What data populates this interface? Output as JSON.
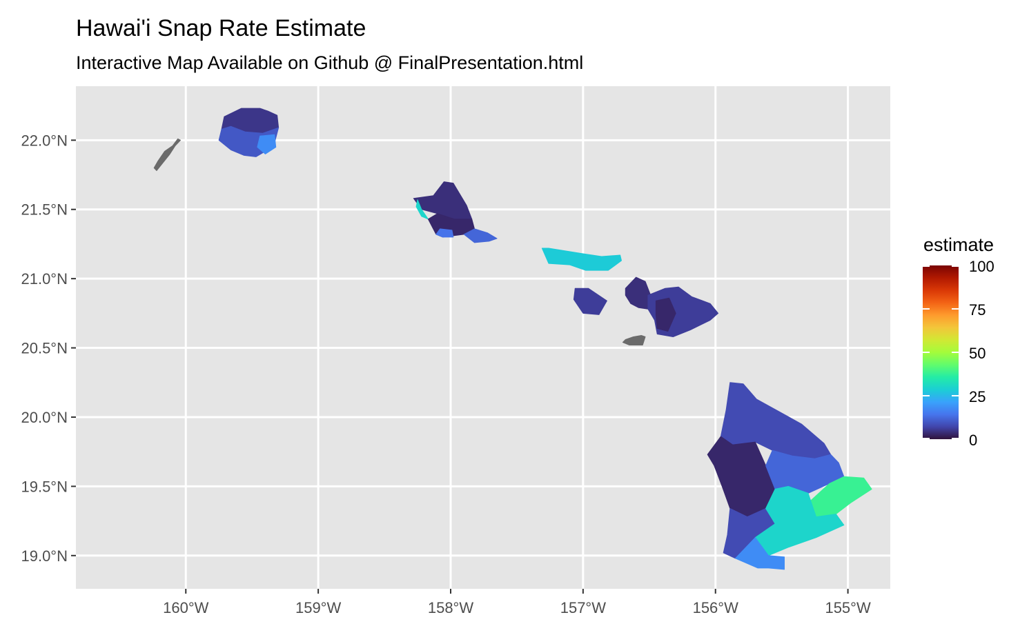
{
  "title": "Hawai'i Snap Rate Estimate",
  "subtitle": "Interactive Map Available on Github @ FinalPresentation.html",
  "map": {
    "panel_background": "#e5e5e5",
    "grid_color": "#ffffff",
    "missing_color": "#6b6b6b",
    "lon_range": [
      -160.83,
      -154.68
    ],
    "lat_range": [
      18.76,
      22.39
    ],
    "lon_ticks": [
      {
        "value": -160,
        "label": "160°W"
      },
      {
        "value": -159,
        "label": "159°W"
      },
      {
        "value": -158,
        "label": "158°W"
      },
      {
        "value": -157,
        "label": "157°W"
      },
      {
        "value": -156,
        "label": "156°W"
      },
      {
        "value": -155,
        "label": "155°W"
      }
    ],
    "lat_ticks": [
      {
        "value": 22.0,
        "label": "22.0°N"
      },
      {
        "value": 21.5,
        "label": "21.5°N"
      },
      {
        "value": 21.0,
        "label": "21.0°N"
      },
      {
        "value": 20.5,
        "label": "20.5°N"
      },
      {
        "value": 20.0,
        "label": "20.0°N"
      },
      {
        "value": 19.5,
        "label": "19.5°N"
      },
      {
        "value": 19.0,
        "label": "19.0°N"
      }
    ],
    "regions": [
      {
        "id": "niihau",
        "estimate": null,
        "points": [
          [
            -160.06,
            22.01
          ],
          [
            -160.1,
            21.96
          ],
          [
            -160.16,
            21.92
          ],
          [
            -160.21,
            21.85
          ],
          [
            -160.24,
            21.8
          ],
          [
            -160.22,
            21.78
          ],
          [
            -160.17,
            21.84
          ],
          [
            -160.12,
            21.9
          ],
          [
            -160.08,
            21.96
          ],
          [
            -160.04,
            22.0
          ]
        ]
      },
      {
        "id": "kauai-north",
        "estimate": 5,
        "points": [
          [
            -159.71,
            22.17
          ],
          [
            -159.58,
            22.23
          ],
          [
            -159.44,
            22.23
          ],
          [
            -159.38,
            22.21
          ],
          [
            -159.31,
            22.18
          ],
          [
            -159.3,
            22.09
          ],
          [
            -159.42,
            22.05
          ],
          [
            -159.55,
            22.06
          ],
          [
            -159.66,
            22.1
          ],
          [
            -159.73,
            22.08
          ]
        ]
      },
      {
        "id": "kauai-south",
        "estimate": 10,
        "points": [
          [
            -159.73,
            22.08
          ],
          [
            -159.66,
            22.1
          ],
          [
            -159.55,
            22.06
          ],
          [
            -159.42,
            22.05
          ],
          [
            -159.3,
            22.09
          ],
          [
            -159.33,
            21.98
          ],
          [
            -159.38,
            21.93
          ],
          [
            -159.47,
            21.88
          ],
          [
            -159.56,
            21.89
          ],
          [
            -159.66,
            21.93
          ],
          [
            -159.75,
            22.0
          ]
        ]
      },
      {
        "id": "kauai-east",
        "estimate": 18,
        "points": [
          [
            -159.44,
            22.03
          ],
          [
            -159.33,
            22.04
          ],
          [
            -159.32,
            21.95
          ],
          [
            -159.4,
            21.9
          ],
          [
            -159.46,
            21.95
          ]
        ]
      },
      {
        "id": "oahu-north",
        "estimate": 4,
        "points": [
          [
            -158.28,
            21.58
          ],
          [
            -158.13,
            21.6
          ],
          [
            -158.05,
            21.7
          ],
          [
            -157.98,
            21.69
          ],
          [
            -157.88,
            21.53
          ],
          [
            -157.84,
            21.43
          ],
          [
            -157.97,
            21.43
          ],
          [
            -158.1,
            21.47
          ],
          [
            -158.22,
            21.5
          ]
        ]
      },
      {
        "id": "oahu-leeward",
        "estimate": 30,
        "points": [
          [
            -158.25,
            21.57
          ],
          [
            -158.22,
            21.5
          ],
          [
            -158.17,
            21.43
          ],
          [
            -158.22,
            21.45
          ],
          [
            -158.26,
            21.52
          ]
        ]
      },
      {
        "id": "oahu-central",
        "estimate": 3,
        "points": [
          [
            -158.17,
            21.43
          ],
          [
            -158.1,
            21.47
          ],
          [
            -157.97,
            21.43
          ],
          [
            -157.84,
            21.43
          ],
          [
            -157.82,
            21.36
          ],
          [
            -157.9,
            21.32
          ],
          [
            -158.06,
            21.3
          ],
          [
            -158.11,
            21.32
          ]
        ]
      },
      {
        "id": "oahu-south",
        "estimate": 12,
        "points": [
          [
            -157.9,
            21.32
          ],
          [
            -157.82,
            21.36
          ],
          [
            -157.72,
            21.33
          ],
          [
            -157.65,
            21.29
          ],
          [
            -157.71,
            21.27
          ],
          [
            -157.82,
            21.26
          ]
        ]
      },
      {
        "id": "oahu-ewa",
        "estimate": 14,
        "points": [
          [
            -158.11,
            21.32
          ],
          [
            -158.06,
            21.3
          ],
          [
            -157.98,
            21.3
          ],
          [
            -157.99,
            21.35
          ],
          [
            -158.08,
            21.36
          ]
        ]
      },
      {
        "id": "molokai",
        "estimate": 28,
        "points": [
          [
            -157.31,
            21.22
          ],
          [
            -157.26,
            21.11
          ],
          [
            -157.1,
            21.1
          ],
          [
            -156.98,
            21.06
          ],
          [
            -156.81,
            21.06
          ],
          [
            -156.71,
            21.13
          ],
          [
            -156.72,
            21.17
          ],
          [
            -156.86,
            21.16
          ],
          [
            -157.0,
            21.18
          ],
          [
            -157.26,
            21.22
          ]
        ]
      },
      {
        "id": "lanai",
        "estimate": 6,
        "points": [
          [
            -157.06,
            20.93
          ],
          [
            -156.96,
            20.93
          ],
          [
            -156.82,
            20.84
          ],
          [
            -156.88,
            20.74
          ],
          [
            -157.0,
            20.75
          ],
          [
            -157.07,
            20.85
          ]
        ]
      },
      {
        "id": "kahoolawe",
        "estimate": null,
        "points": [
          [
            -156.7,
            20.54
          ],
          [
            -156.65,
            20.52
          ],
          [
            -156.55,
            20.52
          ],
          [
            -156.53,
            20.58
          ],
          [
            -156.56,
            20.59
          ],
          [
            -156.62,
            20.58
          ],
          [
            -156.68,
            20.56
          ]
        ]
      },
      {
        "id": "maui-west",
        "estimate": 4,
        "points": [
          [
            -156.68,
            20.93
          ],
          [
            -156.6,
            21.01
          ],
          [
            -156.53,
            20.98
          ],
          [
            -156.49,
            20.88
          ],
          [
            -156.51,
            20.78
          ],
          [
            -156.58,
            20.79
          ],
          [
            -156.64,
            20.82
          ],
          [
            -156.68,
            20.88
          ]
        ]
      },
      {
        "id": "maui-east",
        "estimate": 6,
        "points": [
          [
            -156.51,
            20.88
          ],
          [
            -156.38,
            20.93
          ],
          [
            -156.28,
            20.94
          ],
          [
            -156.18,
            20.87
          ],
          [
            -156.04,
            20.82
          ],
          [
            -155.98,
            20.75
          ],
          [
            -156.04,
            20.7
          ],
          [
            -156.19,
            20.63
          ],
          [
            -156.32,
            20.58
          ],
          [
            -156.44,
            20.6
          ],
          [
            -156.46,
            20.7
          ],
          [
            -156.51,
            20.78
          ]
        ]
      },
      {
        "id": "maui-central",
        "estimate": 3,
        "points": [
          [
            -156.45,
            20.84
          ],
          [
            -156.35,
            20.86
          ],
          [
            -156.3,
            20.75
          ],
          [
            -156.36,
            20.62
          ],
          [
            -156.44,
            20.64
          ],
          [
            -156.45,
            20.74
          ]
        ]
      },
      {
        "id": "hawaii-north",
        "estimate": 8,
        "points": [
          [
            -155.89,
            20.25
          ],
          [
            -155.79,
            20.24
          ],
          [
            -155.69,
            20.13
          ],
          [
            -155.52,
            20.04
          ],
          [
            -155.35,
            19.95
          ],
          [
            -155.18,
            19.81
          ],
          [
            -155.13,
            19.73
          ],
          [
            -155.25,
            19.7
          ],
          [
            -155.42,
            19.72
          ],
          [
            -155.57,
            19.76
          ],
          [
            -155.7,
            19.82
          ],
          [
            -155.87,
            19.8
          ],
          [
            -155.96,
            19.86
          ],
          [
            -155.92,
            20.05
          ]
        ]
      },
      {
        "id": "hawaii-kona",
        "estimate": 3,
        "points": [
          [
            -156.06,
            19.73
          ],
          [
            -155.96,
            19.86
          ],
          [
            -155.87,
            19.8
          ],
          [
            -155.7,
            19.82
          ],
          [
            -155.62,
            19.65
          ],
          [
            -155.55,
            19.48
          ],
          [
            -155.62,
            19.34
          ],
          [
            -155.76,
            19.28
          ],
          [
            -155.89,
            19.34
          ],
          [
            -155.95,
            19.5
          ],
          [
            -156.01,
            19.65
          ]
        ]
      },
      {
        "id": "hawaii-kau-west",
        "estimate": 8,
        "points": [
          [
            -155.89,
            19.34
          ],
          [
            -155.76,
            19.28
          ],
          [
            -155.62,
            19.34
          ],
          [
            -155.55,
            19.23
          ],
          [
            -155.7,
            19.13
          ],
          [
            -155.85,
            18.98
          ],
          [
            -155.94,
            19.02
          ],
          [
            -155.91,
            19.15
          ]
        ]
      },
      {
        "id": "hawaii-hilo",
        "estimate": 12,
        "points": [
          [
            -155.57,
            19.76
          ],
          [
            -155.42,
            19.72
          ],
          [
            -155.25,
            19.7
          ],
          [
            -155.13,
            19.73
          ],
          [
            -155.07,
            19.67
          ],
          [
            -155.03,
            19.57
          ],
          [
            -155.14,
            19.52
          ],
          [
            -155.3,
            19.45
          ],
          [
            -155.45,
            19.5
          ],
          [
            -155.55,
            19.48
          ],
          [
            -155.62,
            19.65
          ]
        ]
      },
      {
        "id": "hawaii-puna",
        "estimate": 38,
        "points": [
          [
            -155.03,
            19.57
          ],
          [
            -154.88,
            19.56
          ],
          [
            -154.82,
            19.48
          ],
          [
            -154.98,
            19.38
          ],
          [
            -155.09,
            19.3
          ],
          [
            -155.24,
            19.28
          ],
          [
            -155.3,
            19.38
          ],
          [
            -155.14,
            19.52
          ]
        ]
      },
      {
        "id": "hawaii-volcano",
        "estimate": 30,
        "points": [
          [
            -155.62,
            19.34
          ],
          [
            -155.55,
            19.48
          ],
          [
            -155.45,
            19.5
          ],
          [
            -155.3,
            19.45
          ],
          [
            -155.24,
            19.28
          ],
          [
            -155.09,
            19.3
          ],
          [
            -155.03,
            19.22
          ],
          [
            -155.24,
            19.13
          ],
          [
            -155.45,
            19.06
          ],
          [
            -155.6,
            19.0
          ],
          [
            -155.7,
            19.13
          ],
          [
            -155.55,
            19.23
          ]
        ]
      },
      {
        "id": "hawaii-south",
        "estimate": 18,
        "points": [
          [
            -155.85,
            18.98
          ],
          [
            -155.7,
            19.13
          ],
          [
            -155.6,
            19.0
          ],
          [
            -155.48,
            18.99
          ],
          [
            -155.48,
            18.9
          ],
          [
            -155.6,
            18.91
          ],
          [
            -155.68,
            18.91
          ]
        ]
      }
    ]
  },
  "legend": {
    "title": "estimate",
    "ticks": [
      "100",
      "75",
      "50",
      "25",
      "0"
    ],
    "colors": [
      "#30123b",
      "#4145ab",
      "#4675ed",
      "#39a2fc",
      "#1bcfd4",
      "#24eca6",
      "#61fc6c",
      "#a4fc3b",
      "#d1e834",
      "#f3c63a",
      "#fe9b2d",
      "#f36315",
      "#d93806",
      "#b11901",
      "#7a0403"
    ]
  }
}
